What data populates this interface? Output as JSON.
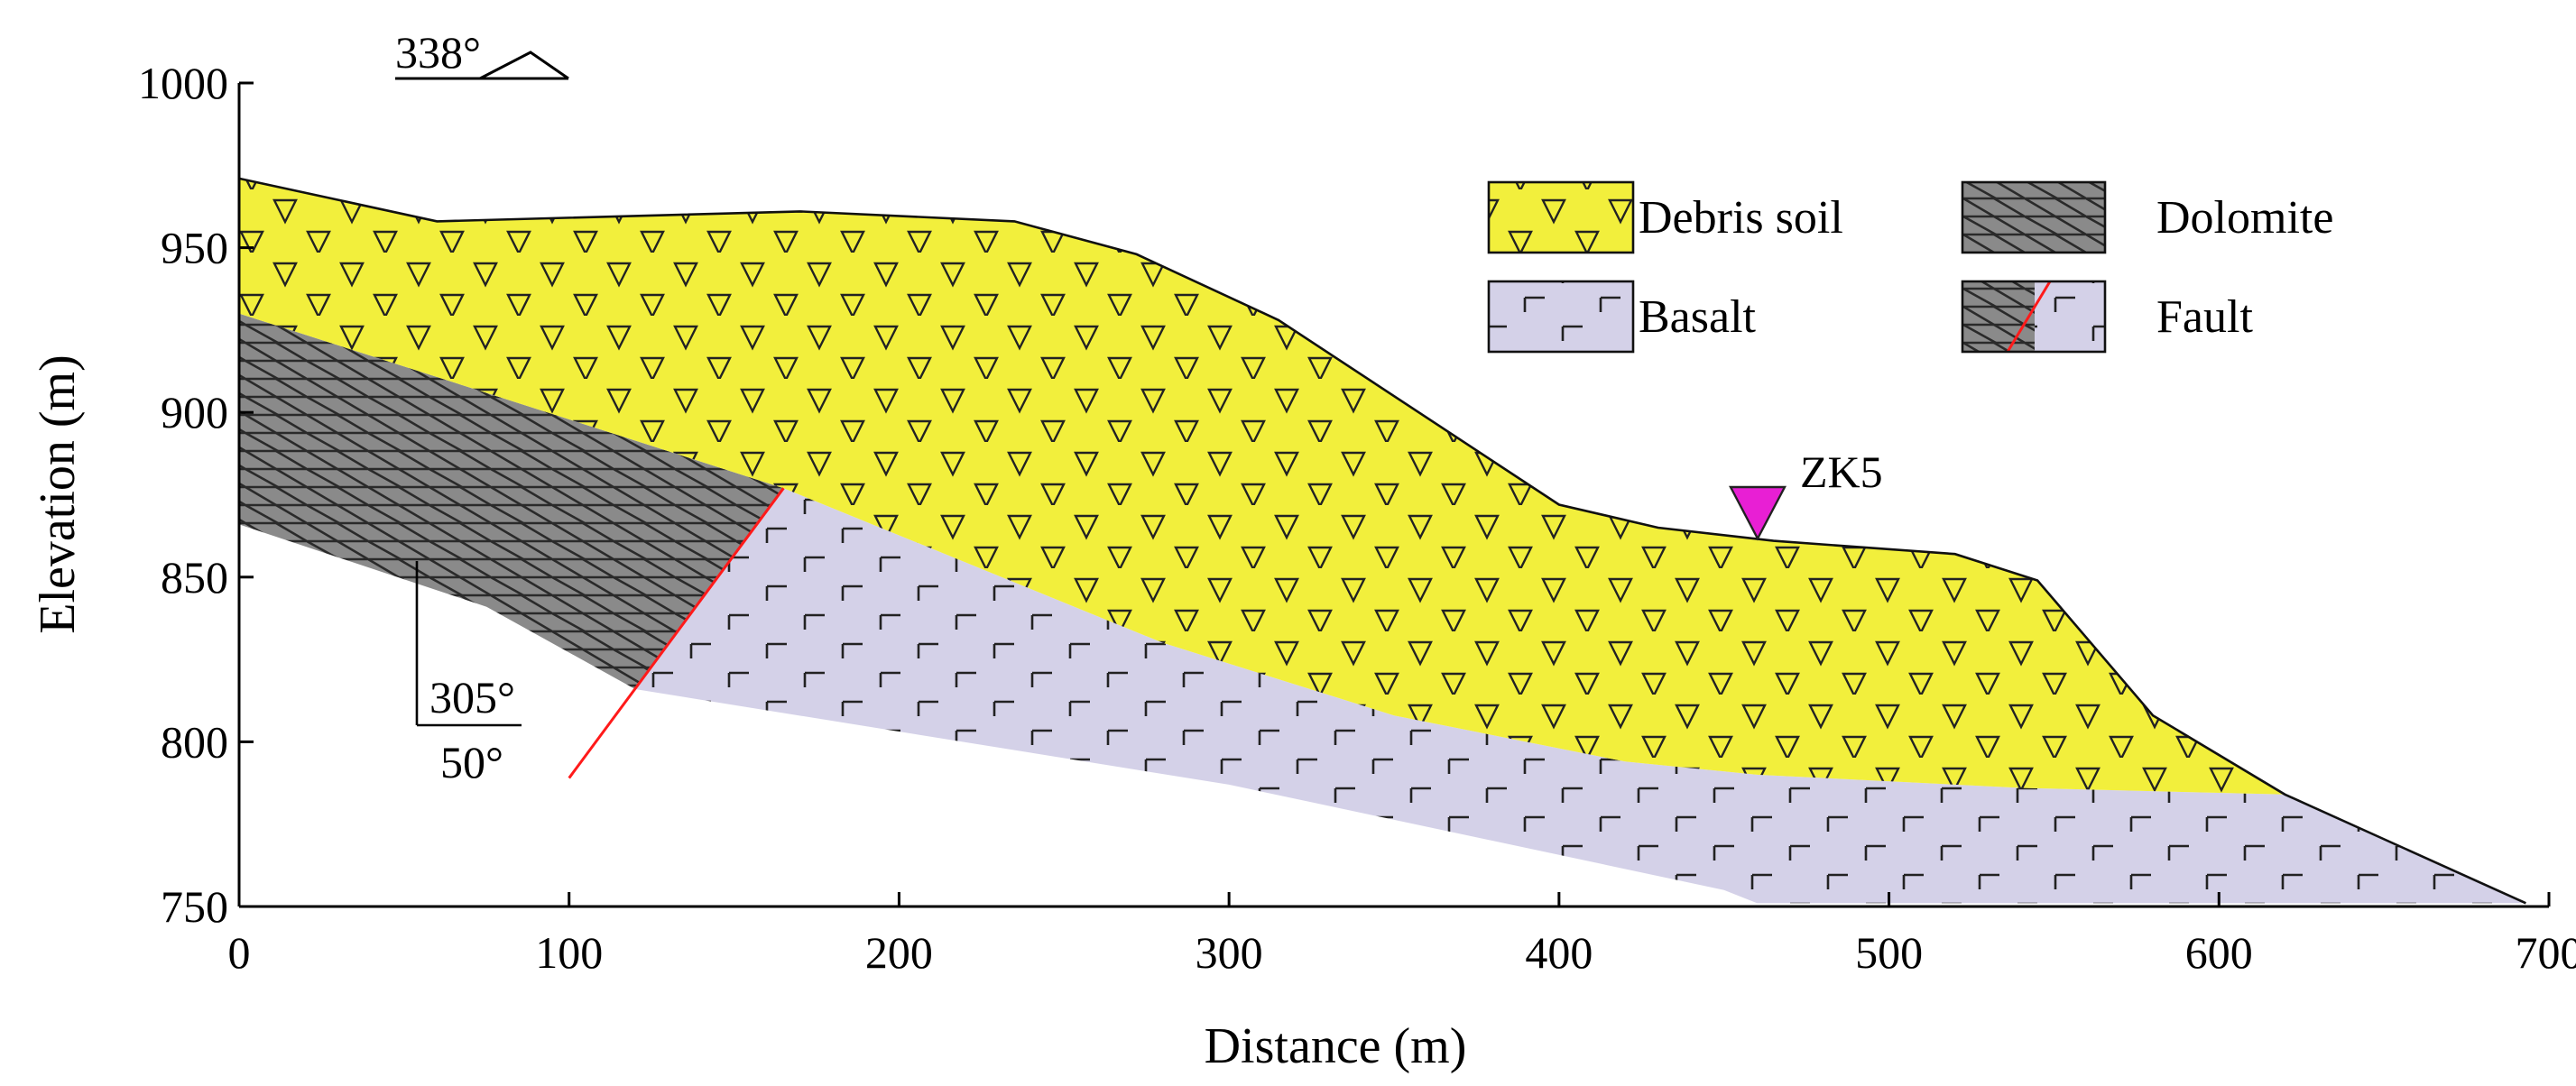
{
  "figure": {
    "type": "geological-cross-section",
    "xlabel": "Distance (m)",
    "ylabel": "Elevation (m)",
    "x_range": [
      0,
      700
    ],
    "y_range": [
      750,
      1000
    ],
    "x_ticks": [
      "0",
      "100",
      "200",
      "300",
      "400",
      "500",
      "600",
      "700"
    ],
    "y_ticks": [
      "750",
      "800",
      "850",
      "900",
      "950",
      "1000"
    ]
  },
  "legend": {
    "debris": "Debris soil",
    "dolomite": "Dolomite",
    "basalt": "Basalt",
    "fault": "Fault"
  },
  "annotations": {
    "orientation": "338°",
    "dip_direction": "305°",
    "dip_angle": "50°",
    "borehole": "ZK5"
  },
  "layers": {
    "surface_profile": [
      [
        0,
        971
      ],
      [
        60,
        958
      ],
      [
        170,
        961
      ],
      [
        235,
        958
      ],
      [
        272,
        948
      ],
      [
        315,
        928
      ],
      [
        400,
        872
      ],
      [
        430,
        865
      ],
      [
        465,
        861
      ],
      [
        520,
        857
      ],
      [
        545,
        849
      ],
      [
        580,
        808
      ],
      [
        620,
        784
      ],
      [
        693,
        751
      ]
    ],
    "debris_base": [
      [
        0,
        930
      ],
      [
        165,
        877
      ],
      [
        280,
        830
      ],
      [
        350,
        808
      ],
      [
        420,
        794
      ],
      [
        460,
        790
      ],
      [
        540,
        786
      ],
      [
        620,
        784
      ]
    ],
    "dolomite_base": [
      [
        0,
        866
      ],
      [
        75,
        841
      ],
      [
        120,
        816
      ]
    ],
    "basalt_bottom": [
      [
        120,
        816
      ],
      [
        300,
        787
      ],
      [
        450,
        755
      ],
      [
        460,
        751
      ],
      [
        693,
        751
      ]
    ],
    "fault_line": [
      [
        100,
        789
      ],
      [
        165,
        877
      ]
    ]
  },
  "colors": {
    "debris": "#f2ef3c",
    "dolomite": "#8a8a8a",
    "basalt": "#d4d1e8",
    "fault": "#ff1a1a",
    "borehole": "#e81fd4"
  }
}
